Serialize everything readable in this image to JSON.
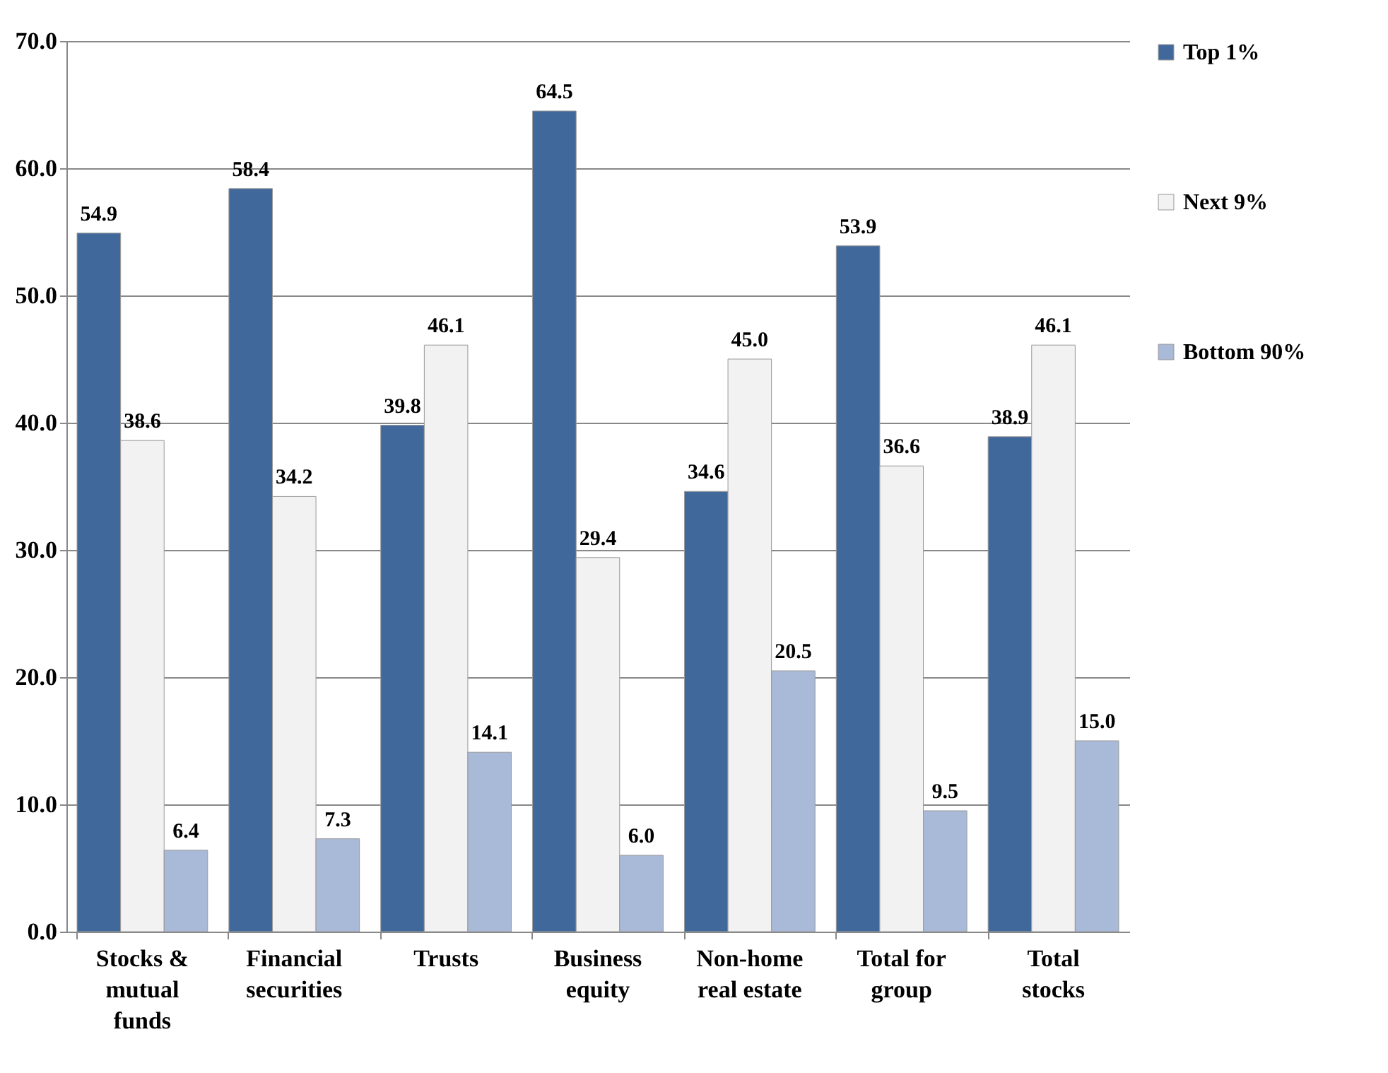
{
  "chart_data": {
    "type": "bar",
    "categories": [
      "Stocks & mutual funds",
      "Financial securities",
      "Trusts",
      "Business equity",
      "Non-home real estate",
      "Total for group",
      "Total stocks"
    ],
    "series": [
      {
        "name": "Top 1%",
        "color": "#41689b",
        "values": [
          54.9,
          58.4,
          39.8,
          64.5,
          34.6,
          53.9,
          38.9
        ],
        "value_labels": [
          "54.9",
          "58.4",
          "39.8",
          "64.5",
          "34.6",
          "53.9",
          "38.9"
        ]
      },
      {
        "name": "Next 9%",
        "color": "#f2f2f2",
        "values": [
          38.6,
          34.2,
          46.1,
          29.4,
          45.0,
          36.6,
          46.1
        ],
        "value_labels": [
          "38.6",
          "34.2",
          "46.1",
          "29.4",
          "45.0",
          "36.6",
          "46.1"
        ]
      },
      {
        "name": "Bottom 90%",
        "color": "#a9bad8",
        "values": [
          6.4,
          7.3,
          14.1,
          6.0,
          20.5,
          9.5,
          15.0
        ],
        "value_labels": [
          "6.4",
          "7.3",
          "14.1",
          "6.0",
          "20.5",
          "9.5",
          "15.0"
        ]
      }
    ],
    "ylim": [
      0,
      70
    ],
    "yticks": [
      {
        "value": 0,
        "label": "0.0"
      },
      {
        "value": 10,
        "label": "10.0"
      },
      {
        "value": 20,
        "label": "20.0"
      },
      {
        "value": 30,
        "label": "30.0"
      },
      {
        "value": 40,
        "label": "40.0"
      },
      {
        "value": 50,
        "label": "50.0"
      },
      {
        "value": 60,
        "label": "60.0"
      },
      {
        "value": 70,
        "label": "70.0"
      }
    ],
    "grid": "y",
    "legend": "right"
  }
}
